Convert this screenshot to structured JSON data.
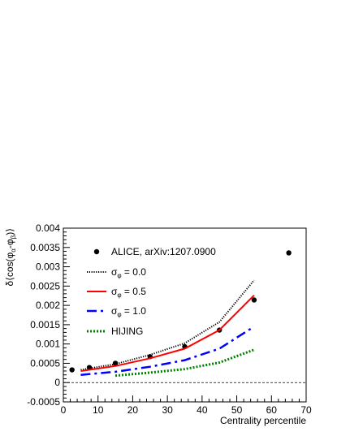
{
  "chart_data": {
    "type": "line",
    "xlabel": "Centrality percentile",
    "ylabel_parts": {
      "main": "δ⟨cos(φ",
      "sub1": "α",
      "mid": "-φ",
      "sub2": "β",
      "end": ")⟩"
    },
    "xlim": [
      0,
      70
    ],
    "ylim": [
      -0.0005,
      0.004
    ],
    "x_ticks": [
      0,
      10,
      20,
      30,
      40,
      50,
      60,
      70
    ],
    "y_ticks": [
      -0.0005,
      0,
      0.0005,
      0.001,
      0.0015,
      0.002,
      0.0025,
      0.003,
      0.0035,
      0.004
    ],
    "x_tick_labels": [
      "0",
      "10",
      "20",
      "30",
      "40",
      "50",
      "60",
      "70"
    ],
    "y_tick_labels": [
      "-0.0005",
      "0",
      "0.0005",
      "0.001",
      "0.0015",
      "0.002",
      "0.0025",
      "0.003",
      "0.0035",
      "0.004"
    ],
    "zero_line": true,
    "legend_position": "top-left",
    "series": [
      {
        "name": "ALICE, arXiv:1207.0900",
        "style": "points",
        "color": "#000000",
        "x": [
          2.5,
          7.5,
          15,
          25,
          35,
          45,
          55,
          65
        ],
        "y": [
          0.00033,
          0.00039,
          0.0005,
          0.00067,
          0.00093,
          0.00136,
          0.00214,
          0.00336
        ]
      },
      {
        "name_parts": {
          "sym": "σ",
          "sub": "φ",
          "val": " = 0.0"
        },
        "style": "dotted",
        "color": "#000000",
        "x": [
          5,
          15,
          25,
          35,
          45,
          55
        ],
        "y": [
          0.00033,
          0.00048,
          0.00072,
          0.00102,
          0.00157,
          0.00265
        ]
      },
      {
        "name_parts": {
          "sym": "σ",
          "sub": "φ",
          "val": " = 0.5"
        },
        "style": "solid",
        "color": "#ff0000",
        "x": [
          5,
          15,
          25,
          35,
          45,
          55
        ],
        "y": [
          0.0003,
          0.00043,
          0.00063,
          0.00088,
          0.00136,
          0.00226
        ]
      },
      {
        "name_parts": {
          "sym": "σ",
          "sub": "φ",
          "val": " = 1.0"
        },
        "style": "dashdot",
        "color": "#0000ff",
        "x": [
          5,
          15,
          25,
          35,
          45,
          55
        ],
        "y": [
          0.0002,
          0.00028,
          0.00041,
          0.00058,
          0.00088,
          0.00145
        ]
      },
      {
        "name": "HIJING",
        "style": "dotted-thick",
        "color": "#008000",
        "x": [
          15,
          25,
          35,
          45,
          55
        ],
        "y": [
          0.00018,
          0.00026,
          0.00035,
          0.00052,
          0.00085
        ]
      }
    ]
  }
}
